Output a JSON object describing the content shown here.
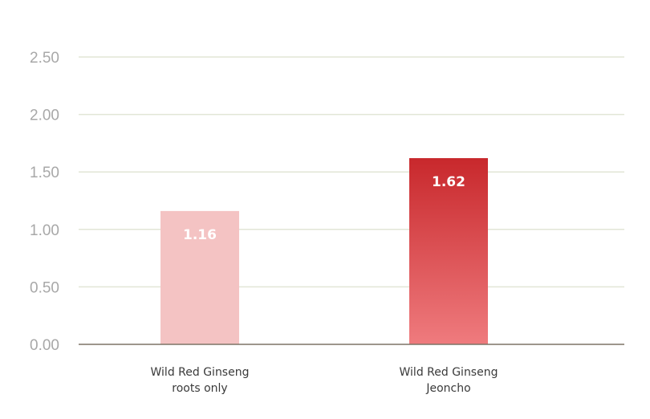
{
  "chart_data": {
    "type": "bar",
    "categories": [
      [
        "Wild Red Ginseng",
        "roots only"
      ],
      [
        "Wild Red Ginseng",
        "Jeoncho"
      ]
    ],
    "values": [
      1.16,
      1.62
    ],
    "data_labels": [
      "1.16",
      "1.62"
    ],
    "ylim": [
      0,
      2.5
    ],
    "yticks": [
      "0.00",
      "0.50",
      "1.00",
      "1.50",
      "2.00",
      "2.50"
    ],
    "grid": true,
    "legend": "none",
    "bar_colors": [
      {
        "top": "#f4c3c3",
        "bottom": "#f4c3c3"
      },
      {
        "top": "#c8282c",
        "bottom": "#ef7b7e"
      }
    ],
    "grid_color": "#e2e6d6",
    "axis_color": "#7d7466"
  }
}
